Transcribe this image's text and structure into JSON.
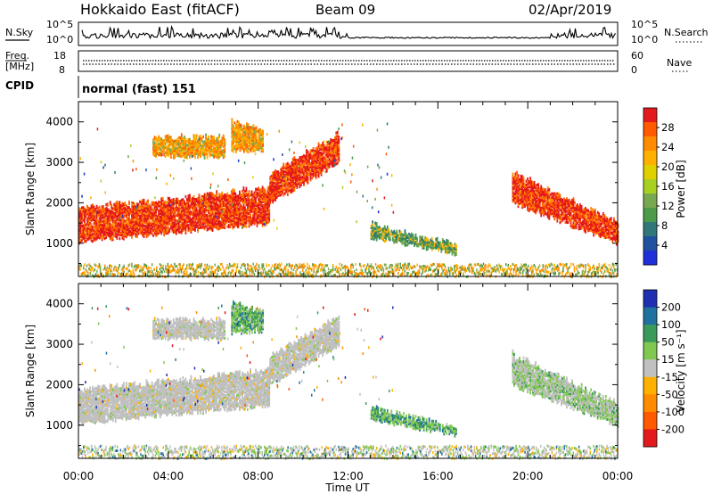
{
  "header": {
    "radar": "Hokkaido East (fitACF)",
    "beam": "Beam 09",
    "date": "02/Apr/2019"
  },
  "strip": {
    "nsky_label": "N.Sky",
    "nsearch_label": "N.Search",
    "noise_ticks_left": [
      "10^5",
      "10^0"
    ],
    "noise_ticks_right": [
      "10^5",
      "10^0"
    ],
    "freq_label": "Freq.",
    "freq_unit": "[MHz]",
    "freq_ticks": [
      "18",
      "8"
    ],
    "nave_label": "Nave",
    "nave_ticks": [
      "60",
      "0"
    ],
    "cpid_label": "CPID",
    "cpid_value": "normal (fast) 151"
  },
  "colors": {
    "grey_scatter": "#c0c0c0"
  },
  "chart_data": [
    {
      "type": "heatmap",
      "name": "power",
      "xlabel": "",
      "ylabel": "Slant Range [km]",
      "x_range_hours": [
        0,
        24
      ],
      "ylim": [
        180,
        4500
      ],
      "yticks": [
        1000,
        2000,
        3000,
        4000
      ],
      "colorbar": {
        "label": "Power [dB]",
        "ticks": [
          "28",
          "24",
          "20",
          "16",
          "12",
          "8",
          "4"
        ],
        "colors": [
          "#e31a1c",
          "#ff5a00",
          "#ff8c00",
          "#ffb000",
          "#e0d000",
          "#a8d020",
          "#78a850",
          "#4c9a4a",
          "#307878",
          "#2050a0",
          "#2030d8"
        ]
      },
      "regions": [
        {
          "t0": 0.0,
          "t1": 8.5,
          "r0": 1050,
          "r1": 1850,
          "r0b": 1500,
          "r1b": 2350,
          "level": "strong"
        },
        {
          "t0": 8.5,
          "t1": 11.6,
          "r0": 2000,
          "r1": 2700,
          "r0b": 3000,
          "r1b": 3700,
          "level": "strong"
        },
        {
          "t0": 3.3,
          "t1": 6.5,
          "r0": 3150,
          "r1": 3600,
          "r0b": 3150,
          "r1b": 3600,
          "level": "weak"
        },
        {
          "t0": 6.8,
          "t1": 8.2,
          "r0": 3300,
          "r1": 4000,
          "r0b": 3300,
          "r1b": 3800,
          "level": "weak"
        },
        {
          "t0": 13.0,
          "t1": 16.8,
          "r0": 1150,
          "r1": 1450,
          "r0b": 750,
          "r1b": 950,
          "level": "mixed"
        },
        {
          "t0": 19.3,
          "t1": 24.0,
          "r0": 2000,
          "r1": 2750,
          "r0b": 1000,
          "r1b": 1500,
          "level": "strong"
        }
      ]
    },
    {
      "type": "heatmap",
      "name": "velocity",
      "xlabel": "Time UT",
      "ylabel": "Slant Range [km]",
      "x_range_hours": [
        0,
        24
      ],
      "xticks": [
        "00:00",
        "04:00",
        "08:00",
        "12:00",
        "16:00",
        "20:00",
        "00:00"
      ],
      "ylim": [
        180,
        4500
      ],
      "yticks": [
        1000,
        2000,
        3000,
        4000
      ],
      "colorbar": {
        "label": "Velocity [m s⁻¹]",
        "ticks": [
          "200",
          "100",
          "50",
          "15",
          "-15",
          "-50",
          "-100",
          "-200"
        ],
        "colors": [
          "#1f2fb0",
          "#2070a0",
          "#3a9a5a",
          "#80c850",
          "#c0c0c0",
          "#ffb000",
          "#ff8c00",
          "#ff5a00",
          "#e31a1c"
        ]
      },
      "regions": [
        {
          "t0": 0.0,
          "t1": 8.5,
          "r0": 1050,
          "r1": 1850,
          "r0b": 1500,
          "r1b": 2350,
          "level": "grey"
        },
        {
          "t0": 8.5,
          "t1": 11.6,
          "r0": 2000,
          "r1": 2700,
          "r0b": 3000,
          "r1b": 3700,
          "level": "grey"
        },
        {
          "t0": 3.3,
          "t1": 6.5,
          "r0": 3150,
          "r1": 3600,
          "r0b": 3150,
          "r1b": 3600,
          "level": "grey"
        },
        {
          "t0": 6.8,
          "t1": 8.2,
          "r0": 3300,
          "r1": 4000,
          "r0b": 3300,
          "r1b": 3800,
          "level": "green"
        },
        {
          "t0": 13.0,
          "t1": 16.8,
          "r0": 1150,
          "r1": 1450,
          "r0b": 750,
          "r1b": 950,
          "level": "green"
        },
        {
          "t0": 19.3,
          "t1": 24.0,
          "r0": 2000,
          "r1": 2750,
          "r0b": 1000,
          "r1b": 1500,
          "level": "greygreen"
        }
      ]
    }
  ]
}
